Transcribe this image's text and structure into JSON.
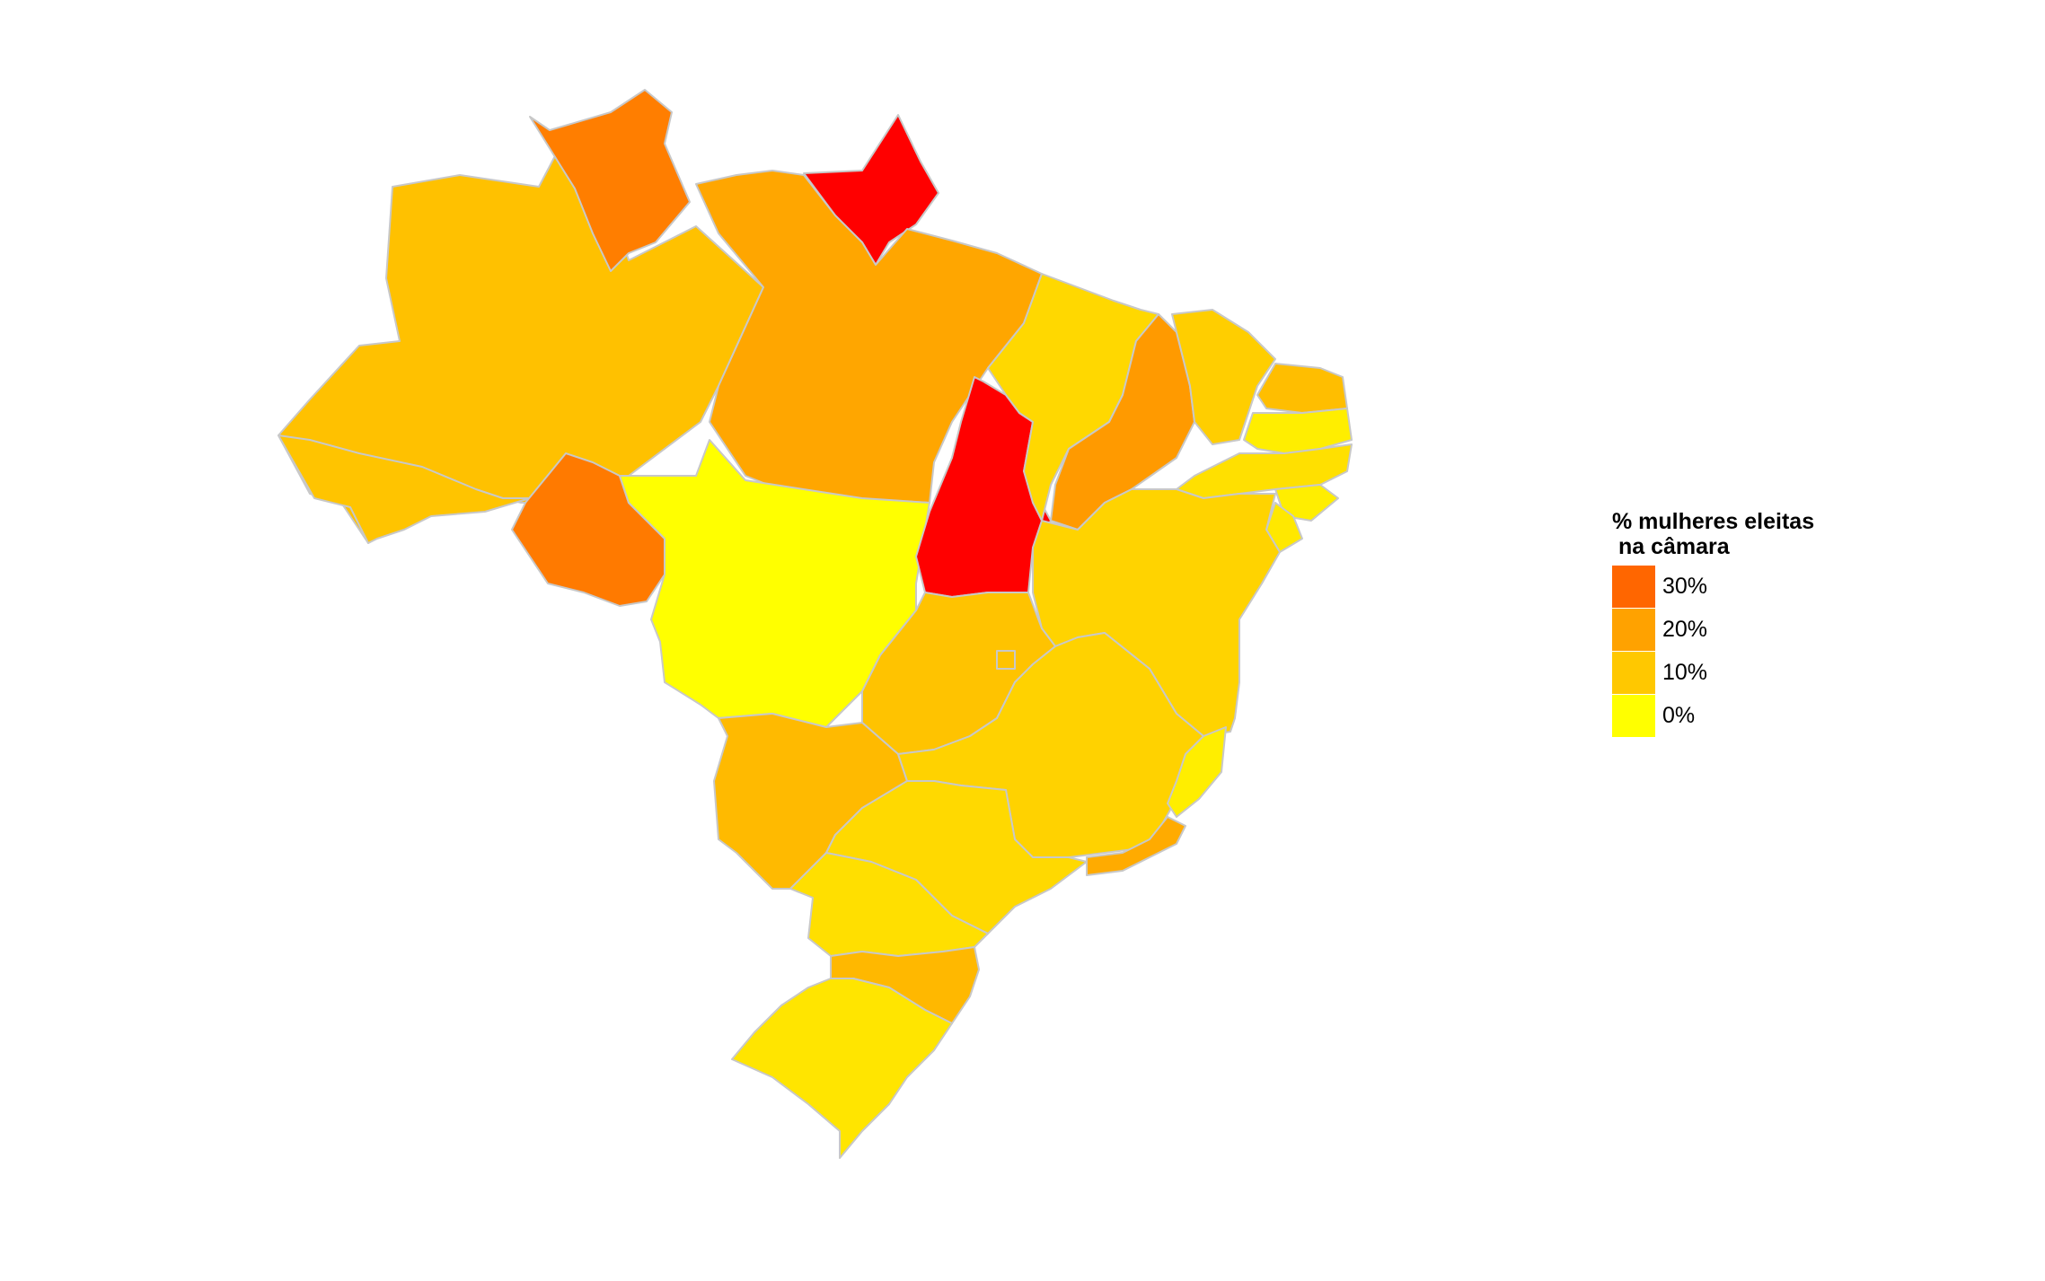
{
  "legend": {
    "title": "% mulheres eleitas\n na câmara",
    "items": [
      {
        "label": "30%",
        "color": "#ff6600"
      },
      {
        "label": "20%",
        "color": "#ffa200"
      },
      {
        "label": "10%",
        "color": "#ffc800"
      },
      {
        "label": "0%",
        "color": "#ffff00"
      }
    ]
  },
  "map": {
    "stroke_color": "#c8c8c8",
    "states": [
      {
        "id": "AM",
        "color": "#ffc100"
      },
      {
        "id": "RR",
        "color": "#ff7e00"
      },
      {
        "id": "AP",
        "color": "#ff0000"
      },
      {
        "id": "PA",
        "color": "#ffa600"
      },
      {
        "id": "AC",
        "color": "#ffc400"
      },
      {
        "id": "RO",
        "color": "#ff7a00"
      },
      {
        "id": "MT",
        "color": "#ffff00"
      },
      {
        "id": "TO",
        "color": "#ff0000"
      },
      {
        "id": "MA",
        "color": "#ffd800"
      },
      {
        "id": "PI",
        "color": "#ff9a00"
      },
      {
        "id": "CE",
        "color": "#ffce00"
      },
      {
        "id": "RN",
        "color": "#ffbe00"
      },
      {
        "id": "PB",
        "color": "#ffee00"
      },
      {
        "id": "PE",
        "color": "#ffe000"
      },
      {
        "id": "AL",
        "color": "#ffee00"
      },
      {
        "id": "SE",
        "color": "#ffe800"
      },
      {
        "id": "BA",
        "color": "#ffd300"
      },
      {
        "id": "GO",
        "color": "#ffc300"
      },
      {
        "id": "DF",
        "color": "#ffc300"
      },
      {
        "id": "MS",
        "color": "#ffba00"
      },
      {
        "id": "MG",
        "color": "#ffd200"
      },
      {
        "id": "ES",
        "color": "#ffee00"
      },
      {
        "id": "RJ",
        "color": "#ffab00"
      },
      {
        "id": "SP",
        "color": "#ffd900"
      },
      {
        "id": "PR",
        "color": "#ffdf00"
      },
      {
        "id": "SC",
        "color": "#ffb800"
      },
      {
        "id": "RS",
        "color": "#ffe500"
      }
    ]
  }
}
